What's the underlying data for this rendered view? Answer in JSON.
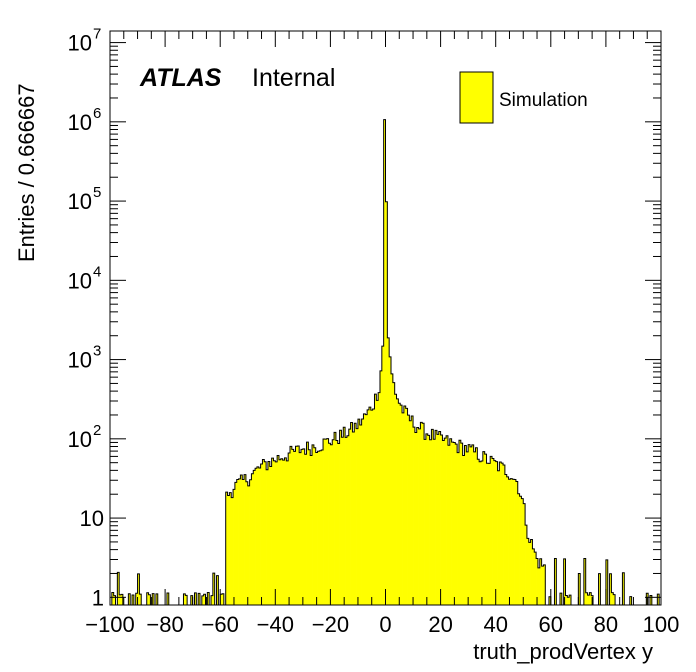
{
  "chart_data": {
    "type": "bar",
    "histogram": true,
    "xlabel": "truth_prodVertex y",
    "ylabel": "Entries / 0.666667",
    "xlim": [
      -100,
      100
    ],
    "ylim": [
      0.8,
      14000000
    ],
    "log_y": true,
    "grid": false,
    "bin_width": 0.666667,
    "fill_color": "#ffff00",
    "line_color": "#000000",
    "x_ticks": [
      -100,
      -80,
      -60,
      -40,
      -20,
      0,
      20,
      40,
      60,
      80,
      100
    ],
    "x_tick_labels": [
      "−100",
      "−80",
      "−60",
      "−40",
      "−20",
      "0",
      "20",
      "40",
      "60",
      "80",
      "100"
    ],
    "y_ticks": [
      {
        "value": 1,
        "base": "1",
        "exp": ""
      },
      {
        "value": 10,
        "base": "10",
        "exp": ""
      },
      {
        "value": 100,
        "base": "10",
        "exp": "2"
      },
      {
        "value": 1000,
        "base": "10",
        "exp": "3"
      },
      {
        "value": 10000,
        "base": "10",
        "exp": "4"
      },
      {
        "value": 100000,
        "base": "10",
        "exp": "5"
      },
      {
        "value": 1000000,
        "base": "10",
        "exp": "6"
      },
      {
        "value": 10000000,
        "base": "10",
        "exp": "7"
      }
    ],
    "legend": {
      "placement": "top-right",
      "entries": [
        {
          "name": "Simulation",
          "color": "#ffff00"
        }
      ]
    },
    "label": {
      "atlas": "ATLAS",
      "status": "Internal"
    },
    "profile": [
      {
        "x": -100,
        "y": 1.5
      },
      {
        "x": -90,
        "y": 1.6
      },
      {
        "x": -80,
        "y": 1.6
      },
      {
        "x": -70,
        "y": 1.8
      },
      {
        "x": -65,
        "y": 2.2
      },
      {
        "x": -62,
        "y": 3
      },
      {
        "x": -60,
        "y": 6
      },
      {
        "x": -58,
        "y": 18
      },
      {
        "x": -55,
        "y": 25
      },
      {
        "x": -50,
        "y": 32
      },
      {
        "x": -45,
        "y": 45
      },
      {
        "x": -40,
        "y": 55
      },
      {
        "x": -35,
        "y": 65
      },
      {
        "x": -30,
        "y": 75
      },
      {
        "x": -25,
        "y": 82
      },
      {
        "x": -20,
        "y": 95
      },
      {
        "x": -15,
        "y": 115
      },
      {
        "x": -10,
        "y": 150
      },
      {
        "x": -6,
        "y": 220
      },
      {
        "x": -4,
        "y": 300
      },
      {
        "x": -2,
        "y": 500
      },
      {
        "x": -1,
        "y": 1500
      },
      {
        "x": -0.33,
        "y": 1100000
      },
      {
        "x": 0.33,
        "y": 100000
      },
      {
        "x": 1,
        "y": 2000
      },
      {
        "x": 2,
        "y": 700
      },
      {
        "x": 4,
        "y": 350
      },
      {
        "x": 6,
        "y": 240
      },
      {
        "x": 10,
        "y": 160
      },
      {
        "x": 15,
        "y": 120
      },
      {
        "x": 20,
        "y": 100
      },
      {
        "x": 25,
        "y": 85
      },
      {
        "x": 30,
        "y": 75
      },
      {
        "x": 35,
        "y": 60
      },
      {
        "x": 40,
        "y": 48
      },
      {
        "x": 45,
        "y": 38
      },
      {
        "x": 48,
        "y": 28
      },
      {
        "x": 50,
        "y": 15
      },
      {
        "x": 52,
        "y": 6
      },
      {
        "x": 55,
        "y": 3
      },
      {
        "x": 60,
        "y": 2
      },
      {
        "x": 70,
        "y": 1.7
      },
      {
        "x": 80,
        "y": 1.6
      },
      {
        "x": 90,
        "y": 1.5
      },
      {
        "x": 100,
        "y": 1.5
      }
    ]
  }
}
